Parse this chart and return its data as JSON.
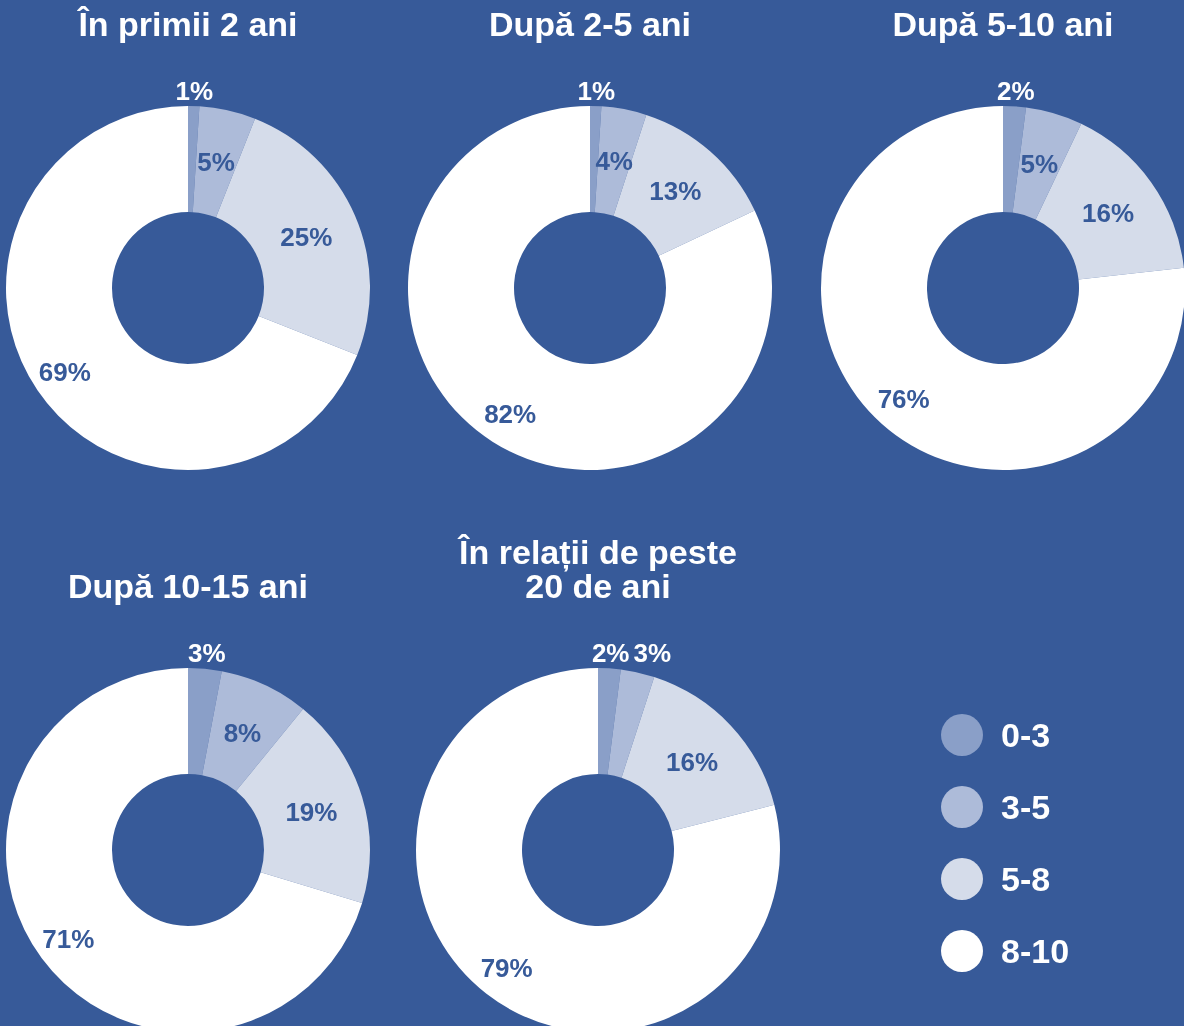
{
  "chart_data": [
    {
      "type": "donut",
      "title": "În primii 2 ani",
      "categories": [
        "0-3",
        "3-5",
        "5-8",
        "8-10"
      ],
      "values": [
        1,
        5,
        25,
        69
      ],
      "value_labels": [
        "1%",
        "5%",
        "25%",
        "69%"
      ],
      "colors": [
        "#8a9fc8",
        "#adbbd9",
        "#d5dcea",
        "#ffffff"
      ],
      "legend": "right"
    },
    {
      "type": "donut",
      "title": "După 2-5 ani",
      "categories": [
        null,
        null,
        null,
        null
      ],
      "values": [
        1,
        4,
        13,
        82
      ],
      "value_labels": [
        "1%",
        "4%",
        "13%",
        "82%"
      ],
      "colors": [
        "#8a9fc8",
        "#adbbd9",
        "#d5dcea",
        "#ffffff"
      ]
    },
    {
      "type": "donut",
      "title": "După 5-10 ani",
      "categories": [
        null,
        null,
        null,
        null
      ],
      "values": [
        2,
        5,
        16,
        76
      ],
      "value_labels": [
        "2%",
        "5%",
        "16%",
        "76%"
      ],
      "colors": [
        "#8a9fc8",
        "#adbbd9",
        "#d5dcea",
        "#ffffff"
      ]
    },
    {
      "type": "donut",
      "title": "După 10-15 ani",
      "categories": [
        null,
        null,
        null,
        null
      ],
      "values": [
        3,
        8,
        19,
        71
      ],
      "value_labels": [
        "3%",
        "8%",
        "19%",
        "71%"
      ],
      "colors": [
        "#8a9fc8",
        "#adbbd9",
        "#d5dcea",
        "#ffffff"
      ]
    },
    {
      "type": "donut",
      "title": "În relații de peste 20 de ani",
      "categories": [
        null,
        null,
        null,
        null
      ],
      "values": [
        2,
        3,
        16,
        79
      ],
      "value_labels": [
        "2%",
        "3%",
        "16%",
        "79%"
      ],
      "colors": [
        "#8a9fc8",
        "#adbbd9",
        "#d5dcea",
        "#ffffff"
      ]
    }
  ]
}
